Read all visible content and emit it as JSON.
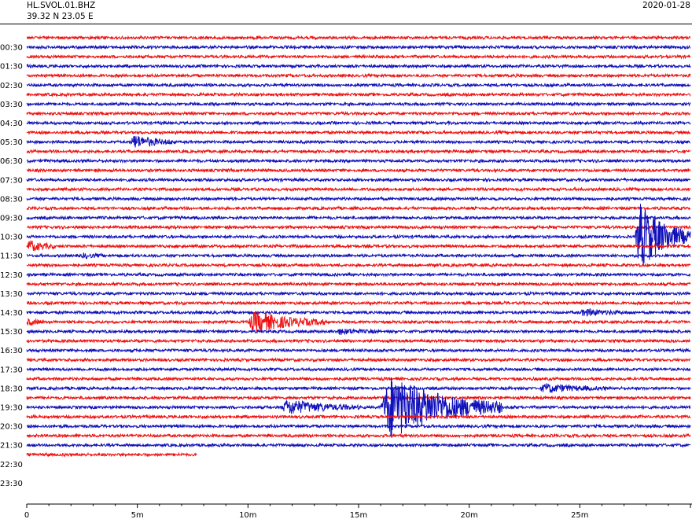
{
  "header": {
    "station": "HL.SVOL.01.BHZ",
    "coordinates": "39.32 N 23.05 E",
    "date": "2020-01-28"
  },
  "chart_data": {
    "type": "line",
    "title": "",
    "xlabel": "",
    "ylabel": "",
    "x_unit": "minutes",
    "xlim": [
      0,
      30
    ],
    "x_ticks": [
      "0",
      "5m",
      "10m",
      "15m",
      "20m",
      "25m"
    ],
    "x_tick_values": [
      0,
      5,
      10,
      15,
      20,
      25
    ],
    "y_ticks": [
      "00:30",
      "01:30",
      "02:30",
      "03:30",
      "04:30",
      "05:30",
      "06:30",
      "07:30",
      "08:30",
      "09:30",
      "10:30",
      "11:30",
      "12:30",
      "13:30",
      "14:30",
      "15:30",
      "16:30",
      "17:30",
      "18:30",
      "19:30",
      "20:30",
      "21:30",
      "22:30",
      "23:30"
    ],
    "traces_per_hour": 2,
    "trace_count": 45,
    "last_trace_end_minute": 7.7,
    "series_colors": [
      "#ee1111",
      "#1111bb"
    ],
    "events": [
      {
        "trace": 11,
        "start": 4.7,
        "duration": 2.0,
        "amplitude": 1.6,
        "color": "#1111bb"
      },
      {
        "trace": 22,
        "start": 0.0,
        "duration": 1.3,
        "amplitude": 1.4,
        "color": "#1111bb"
      },
      {
        "trace": 23,
        "start": 2.5,
        "duration": 1.0,
        "amplitude": 0.5,
        "color": "#ee1111"
      },
      {
        "trace": 30,
        "start": 0.0,
        "duration": 0.8,
        "amplitude": 0.8,
        "color": "#1111bb"
      },
      {
        "trace": 30,
        "start": 10.0,
        "duration": 3.5,
        "amplitude": 2.6,
        "color": "#1111bb"
      },
      {
        "trace": 29,
        "start": 25.0,
        "duration": 2.2,
        "amplitude": 0.8,
        "color": "#1111bb"
      },
      {
        "trace": 31,
        "start": 14.0,
        "duration": 2.0,
        "amplitude": 0.6,
        "color": "#ee1111"
      },
      {
        "trace": 37,
        "start": 23.2,
        "duration": 3.0,
        "amplitude": 1.0,
        "color": "#ee1111"
      },
      {
        "trace": 39,
        "start": 11.5,
        "duration": 3.5,
        "amplitude": 1.8,
        "color": "#ee1111"
      },
      {
        "trace": 39,
        "start": 16.0,
        "duration": 5.5,
        "amplitude": 8.0,
        "color": "#ee1111"
      },
      {
        "trace": 21,
        "start": 27.5,
        "duration": 2.5,
        "amplitude": 8.5,
        "color": "#ee1111"
      }
    ],
    "grid": false
  }
}
